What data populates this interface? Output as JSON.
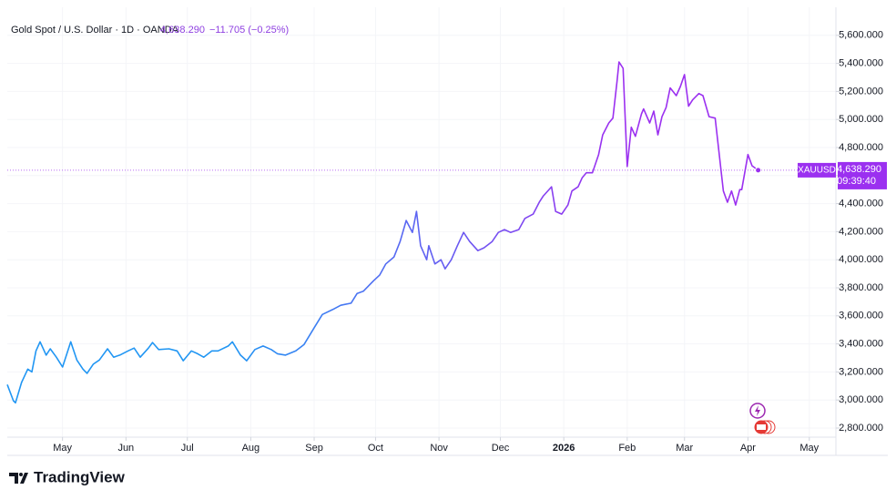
{
  "chart_data": {
    "type": "line",
    "title": "Gold Spot / U.S. Dollar · 1D · OANDA",
    "price_header": "4,638.290",
    "change_header": "−11.705 (−0.25%)",
    "symbol": "XAUUSD",
    "last_price_label": "4,638.290",
    "countdown": "09:39:40",
    "brand": "TradingView",
    "gradient": [
      "#2196f3",
      "#9b30f0"
    ],
    "grid": true,
    "xlim": [
      -27,
      378
    ],
    "xticks": [
      {
        "value": 0,
        "label": "May"
      },
      {
        "value": 31,
        "label": "Jun"
      },
      {
        "value": 61,
        "label": "Jul"
      },
      {
        "value": 92,
        "label": "Aug"
      },
      {
        "value": 123,
        "label": "Sep"
      },
      {
        "value": 153,
        "label": "Oct"
      },
      {
        "value": 184,
        "label": "Nov"
      },
      {
        "value": 214,
        "label": "Dec"
      },
      {
        "value": 245,
        "label": "2026"
      },
      {
        "value": 276,
        "label": "Feb"
      },
      {
        "value": 304,
        "label": "Mar"
      },
      {
        "value": 335,
        "label": "Apr"
      },
      {
        "value": 365,
        "label": "May"
      }
    ],
    "ylim": [
      2735,
      5800
    ],
    "yticks": [
      {
        "value": 2800,
        "label": "2,800.000"
      },
      {
        "value": 3000,
        "label": "3,000.000"
      },
      {
        "value": 3200,
        "label": "3,200.000"
      },
      {
        "value": 3400,
        "label": "3,400.000"
      },
      {
        "value": 3600,
        "label": "3,600.000"
      },
      {
        "value": 3800,
        "label": "3,800.000"
      },
      {
        "value": 4000,
        "label": "4,000.000"
      },
      {
        "value": 4200,
        "label": "4,200.000"
      },
      {
        "value": 4400,
        "label": "4,400.000"
      },
      {
        "value": 4600,
        "label": "4,600.000"
      },
      {
        "value": 4800,
        "label": "4,800.000"
      },
      {
        "value": 5000,
        "label": "5,000.000"
      },
      {
        "value": 5200,
        "label": "5,200.000"
      },
      {
        "value": 5400,
        "label": "5,400.000"
      },
      {
        "value": 5600,
        "label": "5,600.000"
      }
    ],
    "x": [
      -27,
      -24,
      -23,
      -20,
      -17,
      -15,
      -13,
      -11,
      -8,
      -6,
      -3,
      0,
      4,
      7,
      10,
      12,
      15,
      18,
      22,
      25,
      28,
      32,
      35,
      38,
      42,
      44,
      47,
      52,
      56,
      59,
      63,
      66,
      69,
      73,
      76,
      81,
      83,
      87,
      90,
      94,
      98,
      102,
      105,
      109,
      114,
      118,
      123,
      127,
      132,
      136,
      141,
      144,
      147,
      152,
      155,
      158,
      162,
      165,
      168,
      171,
      173,
      175,
      178,
      179,
      182,
      185,
      187,
      190,
      193,
      196,
      199,
      203,
      206,
      210,
      213,
      216,
      219,
      223,
      226,
      230,
      233,
      235,
      239,
      241,
      244,
      247,
      249,
      252,
      254,
      256,
      259,
      262,
      264,
      267,
      269,
      271,
      272,
      274,
      276,
      278,
      280,
      283,
      284,
      287,
      289,
      291,
      293,
      295,
      297,
      300,
      302,
      304,
      306,
      308,
      311,
      313,
      316,
      319,
      321,
      323,
      325,
      327,
      329,
      331,
      332,
      335,
      337,
      340
    ],
    "series": [
      {
        "name": "XAUUSD",
        "values": [
          3110,
          2995,
          2980,
          3125,
          3220,
          3200,
          3350,
          3415,
          3320,
          3365,
          3305,
          3235,
          3415,
          3285,
          3220,
          3190,
          3255,
          3285,
          3365,
          3305,
          3320,
          3350,
          3370,
          3305,
          3370,
          3410,
          3360,
          3365,
          3350,
          3280,
          3350,
          3330,
          3305,
          3350,
          3350,
          3385,
          3415,
          3320,
          3280,
          3360,
          3385,
          3360,
          3330,
          3320,
          3350,
          3395,
          3515,
          3610,
          3645,
          3675,
          3690,
          3760,
          3775,
          3850,
          3890,
          3970,
          4020,
          4130,
          4280,
          4195,
          4345,
          4100,
          4000,
          4100,
          3970,
          4000,
          3935,
          4000,
          4100,
          4195,
          4130,
          4065,
          4085,
          4130,
          4195,
          4215,
          4195,
          4215,
          4295,
          4325,
          4410,
          4455,
          4520,
          4345,
          4325,
          4390,
          4490,
          4520,
          4585,
          4620,
          4620,
          4750,
          4890,
          4975,
          5010,
          5270,
          5410,
          5365,
          4665,
          4945,
          4880,
          5040,
          5075,
          4975,
          5060,
          4890,
          5020,
          5085,
          5225,
          5170,
          5235,
          5320,
          5095,
          5140,
          5185,
          5170,
          5020,
          5010,
          4750,
          4490,
          4410,
          4490,
          4390,
          4500,
          4500,
          4750,
          4670,
          4638.29
        ]
      }
    ]
  }
}
